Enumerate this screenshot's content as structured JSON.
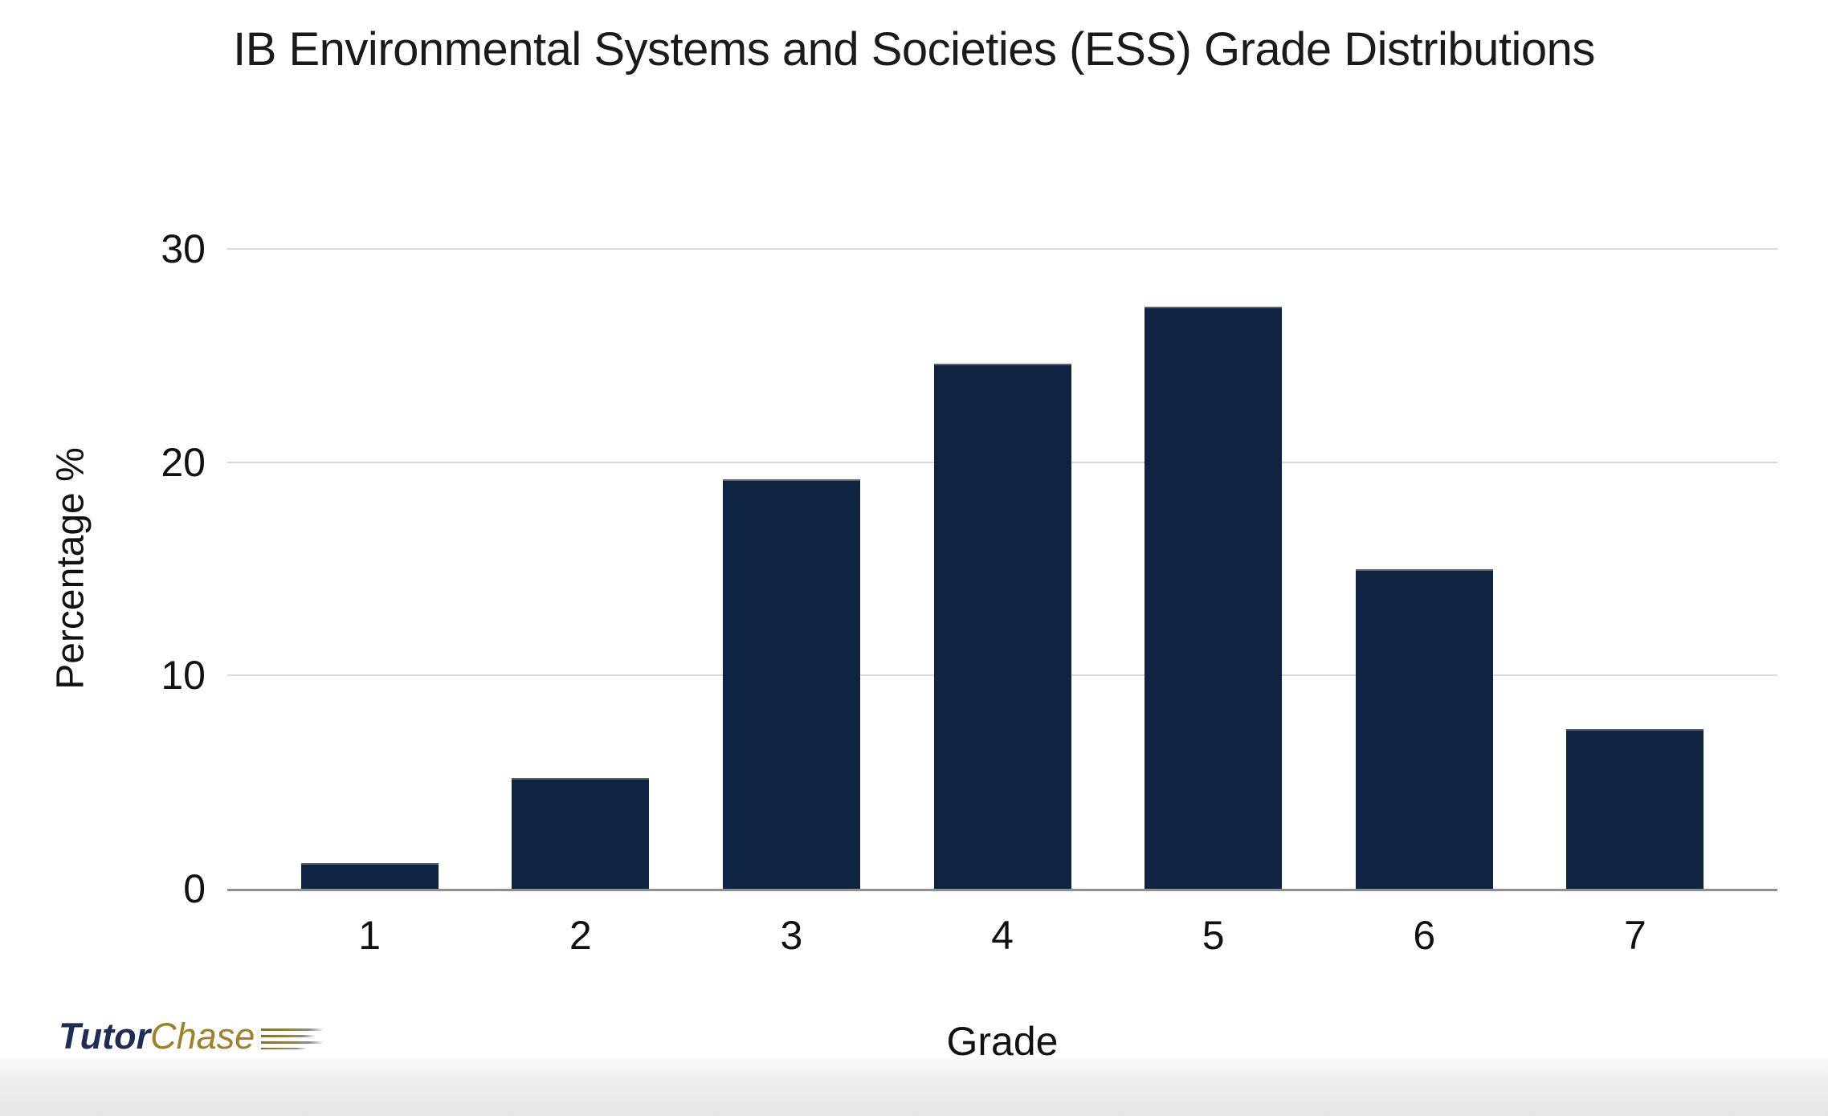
{
  "chart_data": {
    "type": "bar",
    "title": "IB Environmental Systems and Societies (ESS) Grade Distributions",
    "xlabel": "Grade",
    "ylabel": "Percentage %",
    "categories": [
      "1",
      "2",
      "3",
      "4",
      "5",
      "6",
      "7"
    ],
    "values": [
      1.2,
      5.2,
      19.2,
      24.6,
      27.3,
      15.0,
      7.5
    ],
    "ylim": [
      0,
      30
    ],
    "yticks": [
      0,
      10,
      20,
      30
    ],
    "grid": "horizontal-light",
    "legend_position": "none",
    "bar_color": "#0e2442"
  },
  "branding": {
    "logo_part1": "Tutor",
    "logo_part2": "Chase",
    "logo_part1_color": "#1e2c56",
    "logo_part2_color": "#a1802a"
  },
  "colors": {
    "background": "#ffffff",
    "gridline": "#d9d9d9",
    "axis_line": "#8f8f8f",
    "text": "#1a1a1a"
  }
}
